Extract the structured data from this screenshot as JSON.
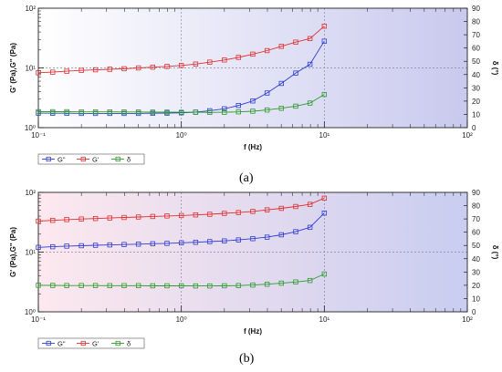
{
  "panels": [
    {
      "caption": "(a)",
      "chart_data": {
        "type": "line",
        "title": "",
        "xlabel": "f (Hz)",
        "ylabel": "G' (Pa),G'' (Pa)",
        "y2label": "δ (°)",
        "xscale": "log",
        "yscale": "log",
        "xlim": [
          0.1,
          100
        ],
        "ylim": [
          1,
          100
        ],
        "y2lim": [
          0,
          90
        ],
        "x_ticks": [
          "10⁻¹",
          "10⁰",
          "10¹",
          "10²"
        ],
        "y_ticks": [
          "10⁰",
          "10¹",
          "10²"
        ],
        "y2_ticks": [
          "0",
          "10",
          "20",
          "30",
          "40",
          "50",
          "60",
          "70",
          "80",
          "90"
        ],
        "grid": "dotted",
        "legend_position": "bottom-left",
        "x": [
          0.1,
          0.126,
          0.158,
          0.2,
          0.251,
          0.316,
          0.398,
          0.501,
          0.631,
          0.794,
          1.0,
          1.26,
          1.58,
          2.0,
          2.51,
          3.16,
          3.98,
          5.01,
          6.31,
          7.94,
          10.0
        ],
        "series": [
          {
            "name": "G\"",
            "color": "#2f3fd0",
            "axis": "left",
            "values": [
              1.75,
              1.74,
              1.74,
              1.73,
              1.73,
              1.73,
              1.73,
              1.73,
              1.74,
              1.75,
              1.77,
              1.82,
              1.92,
              2.07,
              2.35,
              2.8,
              3.8,
              5.5,
              8.2,
              11.5,
              28.0
            ]
          },
          {
            "name": "G'",
            "color": "#e03030",
            "axis": "left",
            "values": [
              8.3,
              8.5,
              8.8,
              9.1,
              9.3,
              9.5,
              9.7,
              10.0,
              10.3,
              10.6,
              11.0,
              11.6,
              12.5,
              13.6,
              15.0,
              17.0,
              19.5,
              23.0,
              27.0,
              31.0,
              50.0
            ]
          },
          {
            "name": "δ",
            "color": "#2e9a2e",
            "axis": "right",
            "values": [
              12.0,
              12.0,
              12.0,
              11.9,
              11.9,
              11.9,
              11.8,
              11.8,
              11.7,
              11.7,
              11.6,
              11.6,
              11.5,
              11.6,
              11.9,
              12.4,
              13.3,
              14.6,
              16.2,
              18.5,
              25.0
            ]
          }
        ]
      }
    },
    {
      "caption": "(b)",
      "chart_data": {
        "type": "line",
        "title": "",
        "xlabel": "f (Hz)",
        "ylabel": "G' (Pa),G'' (Pa)",
        "y2label": "δ (°)",
        "xscale": "log",
        "yscale": "log",
        "xlim": [
          0.1,
          100
        ],
        "ylim": [
          1,
          100
        ],
        "y2lim": [
          0,
          90
        ],
        "x_ticks": [
          "10⁻¹",
          "10⁰",
          "10¹",
          "10²"
        ],
        "y_ticks": [
          "10⁰",
          "10¹",
          "10²"
        ],
        "y2_ticks": [
          "0",
          "10",
          "20",
          "30",
          "40",
          "50",
          "60",
          "70",
          "80",
          "90"
        ],
        "grid": "dotted",
        "legend_position": "bottom-left",
        "x": [
          0.1,
          0.126,
          0.158,
          0.2,
          0.251,
          0.316,
          0.398,
          0.501,
          0.631,
          0.794,
          1.0,
          1.26,
          1.58,
          2.0,
          2.51,
          3.16,
          3.98,
          5.01,
          6.31,
          7.94,
          10.0
        ],
        "series": [
          {
            "name": "G\"",
            "color": "#2f3fd0",
            "axis": "left",
            "values": [
              12.0,
              12.3,
              12.6,
              12.8,
              13.0,
              13.2,
              13.4,
              13.6,
              13.8,
              14.0,
              14.3,
              14.6,
              15.0,
              15.4,
              16.0,
              16.8,
              17.8,
              19.5,
              22.0,
              26.0,
              45.0
            ]
          },
          {
            "name": "G'",
            "color": "#e03030",
            "axis": "left",
            "values": [
              33.0,
              34.0,
              35.0,
              35.8,
              36.5,
              37.2,
              38.0,
              38.7,
              39.5,
              40.3,
              41.0,
              42.0,
              43.0,
              44.5,
              46.0,
              48.0,
              51.0,
              54.0,
              58.0,
              63.0,
              80.0
            ]
          },
          {
            "name": "δ",
            "color": "#2e9a2e",
            "axis": "right",
            "values": [
              20.0,
              19.9,
              19.8,
              19.8,
              19.8,
              19.7,
              19.7,
              19.7,
              19.6,
              19.6,
              19.6,
              19.5,
              19.5,
              19.6,
              19.8,
              20.2,
              20.8,
              21.6,
              22.5,
              23.6,
              28.5
            ]
          }
        ]
      }
    }
  ]
}
